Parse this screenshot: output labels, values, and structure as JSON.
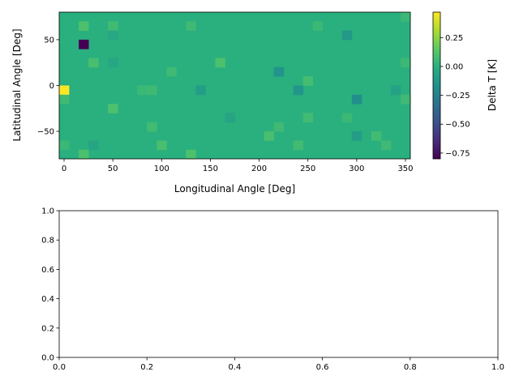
{
  "chart_data": [
    {
      "type": "heatmap",
      "title": "",
      "xlabel": "Longitudinal Angle [Deg]",
      "ylabel": "Latitudinal Angle [Deg]",
      "xlim": [
        -5,
        355
      ],
      "ylim": [
        -80,
        80
      ],
      "xticks": [
        0,
        50,
        100,
        150,
        200,
        250,
        300,
        350
      ],
      "yticks": [
        -50,
        0,
        50
      ],
      "grid_step": {
        "lon": 10,
        "lat": 10
      },
      "lon_start": -5,
      "lat_start": -80,
      "background_value": 0.0,
      "cells": [
        {
          "lon": 0,
          "lat": -5,
          "value": 0.47
        },
        {
          "lon": 20,
          "lat": 45,
          "value": -0.8
        },
        {
          "lon": 20,
          "lat": 65,
          "value": 0.1
        },
        {
          "lon": 50,
          "lat": 65,
          "value": 0.07
        },
        {
          "lon": 130,
          "lat": 65,
          "value": 0.06
        },
        {
          "lon": 350,
          "lat": 75,
          "value": 0.05
        },
        {
          "lon": 260,
          "lat": 65,
          "value": 0.05
        },
        {
          "lon": 290,
          "lat": 55,
          "value": -0.12
        },
        {
          "lon": 50,
          "lat": 55,
          "value": -0.04
        },
        {
          "lon": 160,
          "lat": 25,
          "value": 0.1
        },
        {
          "lon": 30,
          "lat": 25,
          "value": 0.09
        },
        {
          "lon": 50,
          "lat": 25,
          "value": -0.05
        },
        {
          "lon": 220,
          "lat": 15,
          "value": -0.15
        },
        {
          "lon": 110,
          "lat": 15,
          "value": 0.06
        },
        {
          "lon": 350,
          "lat": 25,
          "value": 0.05
        },
        {
          "lon": 240,
          "lat": -5,
          "value": -0.14
        },
        {
          "lon": 250,
          "lat": 5,
          "value": 0.08
        },
        {
          "lon": 140,
          "lat": -5,
          "value": -0.1
        },
        {
          "lon": 80,
          "lat": -5,
          "value": 0.05
        },
        {
          "lon": 90,
          "lat": -5,
          "value": 0.06
        },
        {
          "lon": 340,
          "lat": -5,
          "value": -0.08
        },
        {
          "lon": 300,
          "lat": -15,
          "value": -0.18
        },
        {
          "lon": 0,
          "lat": -15,
          "value": 0.06
        },
        {
          "lon": 350,
          "lat": -15,
          "value": 0.06
        },
        {
          "lon": 50,
          "lat": -25,
          "value": 0.1
        },
        {
          "lon": 250,
          "lat": -35,
          "value": 0.07
        },
        {
          "lon": 170,
          "lat": -35,
          "value": -0.06
        },
        {
          "lon": 290,
          "lat": -35,
          "value": 0.05
        },
        {
          "lon": 90,
          "lat": -45,
          "value": 0.07
        },
        {
          "lon": 220,
          "lat": -45,
          "value": 0.06
        },
        {
          "lon": 300,
          "lat": -55,
          "value": -0.1
        },
        {
          "lon": 210,
          "lat": -55,
          "value": 0.09
        },
        {
          "lon": 320,
          "lat": -55,
          "value": 0.07
        },
        {
          "lon": 100,
          "lat": -65,
          "value": 0.09
        },
        {
          "lon": 240,
          "lat": -65,
          "value": 0.07
        },
        {
          "lon": 0,
          "lat": -65,
          "value": 0.05
        },
        {
          "lon": 30,
          "lat": -65,
          "value": -0.06
        },
        {
          "lon": 330,
          "lat": -65,
          "value": 0.06
        },
        {
          "lon": 20,
          "lat": -75,
          "value": 0.1
        },
        {
          "lon": 130,
          "lat": -75,
          "value": 0.1
        }
      ],
      "colorbar": {
        "label": "Delta T [K]",
        "min": -0.8,
        "max": 0.47,
        "ticks": [
          0.25,
          0.0,
          -0.25,
          -0.5,
          -0.75
        ],
        "tick_labels": [
          "0.25",
          "0.00",
          "−0.25",
          "−0.50",
          "−0.75"
        ],
        "colormap": "viridis"
      }
    },
    {
      "type": "line",
      "title": "",
      "xlabel": "",
      "ylabel": "",
      "xlim": [
        0,
        1
      ],
      "ylim": [
        0,
        1
      ],
      "xticks": [
        "0.0",
        "0.2",
        "0.4",
        "0.6",
        "0.8",
        "1.0"
      ],
      "yticks": [
        "0.0",
        "0.2",
        "0.4",
        "0.6",
        "0.8",
        "1.0"
      ],
      "series": []
    }
  ]
}
